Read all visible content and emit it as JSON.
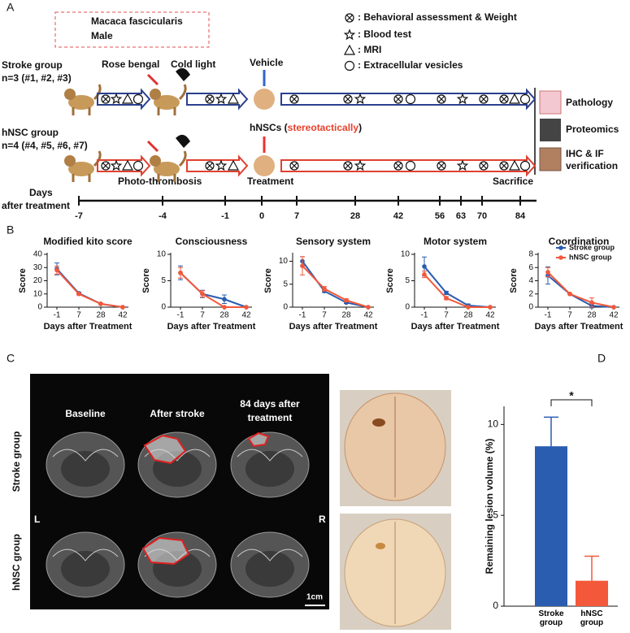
{
  "panel_labels": [
    "A",
    "B",
    "C",
    "D"
  ],
  "panel_a": {
    "species": [
      "Macaca fascicularis",
      "Male"
    ],
    "legend": [
      ": Behavioral assessment & Weight",
      ": Blood test",
      ": MRI",
      ": Extracellular vesicles"
    ],
    "groups": [
      {
        "name": "Stroke group",
        "n": "n=3 (#1, #2, #3)"
      },
      {
        "name": "hNSC group",
        "n": "n=4 (#4, #5, #6, #7)"
      }
    ],
    "steps": {
      "rose_bengal": "Rose bengal",
      "cold_light": "Cold light",
      "vehicle": "Vehicle",
      "hnsc": [
        "hNSCs (",
        "stereotactically",
        ")"
      ],
      "photothrombosis": "Photo-thrombosis",
      "treatment": "Treatment",
      "sacrifice": "Sacrifice"
    },
    "outcomes": [
      "Pathology",
      "Proteomics",
      "IHC & IF",
      "verification"
    ],
    "timeline": {
      "label": [
        "Days",
        "after treatment"
      ],
      "ticks": [
        -7,
        -4,
        -1,
        0,
        7,
        28,
        42,
        56,
        63,
        70,
        84
      ]
    }
  },
  "panel_c": {
    "columns": [
      "Baseline",
      "After stroke",
      [
        "84 days after",
        "treatment"
      ]
    ],
    "rows": [
      "Stroke group",
      "hNSC group"
    ],
    "sides": [
      "L",
      "R"
    ],
    "scale": "1cm"
  },
  "chart_data": [
    {
      "type": "line",
      "title": "Modified kito score",
      "xlabel": "Days after Treatment",
      "ylabel": "Score",
      "categories": [
        "-1",
        "7",
        "28",
        "42"
      ],
      "ylim": [
        0,
        40
      ],
      "yticks": [
        0,
        10,
        20,
        30,
        40
      ],
      "series": [
        {
          "color": "#2a5db0",
          "values": [
            29,
            10.5,
            2.5,
            0
          ],
          "errors": [
            4.5,
            1,
            0.5,
            0
          ]
        },
        {
          "color": "#f4583a",
          "values": [
            28,
            10,
            2.5,
            0
          ],
          "errors": [
            3,
            0.8,
            0.5,
            0
          ]
        }
      ]
    },
    {
      "type": "line",
      "title": "Consciousness",
      "xlabel": "Days after Treatment",
      "ylabel": "Score",
      "categories": [
        "-1",
        "7",
        "28",
        "42"
      ],
      "ylim": [
        0,
        10
      ],
      "yticks": [
        0,
        5,
        10
      ],
      "series": [
        {
          "color": "#2a5db0",
          "values": [
            6.5,
            2.5,
            1.5,
            0
          ],
          "errors": [
            1.3,
            0.7,
            0.8,
            0
          ]
        },
        {
          "color": "#f4583a",
          "values": [
            6.5,
            2.5,
            0,
            0
          ],
          "errors": [
            1,
            0.6,
            0,
            0
          ]
        }
      ]
    },
    {
      "type": "line",
      "title": "Sensory system",
      "xlabel": "Days after Treatment",
      "ylabel": "Score",
      "categories": [
        "-1",
        "7",
        "28",
        "42"
      ],
      "ylim": [
        0,
        11.5
      ],
      "yticks": [
        0,
        5,
        10
      ],
      "series": [
        {
          "color": "#2a5db0",
          "values": [
            10,
            3.5,
            1,
            0
          ],
          "errors": [
            1,
            0.3,
            0.2,
            0
          ]
        },
        {
          "color": "#f4583a",
          "values": [
            9,
            4,
            1.5,
            0
          ],
          "errors": [
            2,
            0.5,
            0.3,
            0
          ]
        }
      ]
    },
    {
      "type": "line",
      "title": "Motor system",
      "xlabel": "Days after Treatment",
      "ylabel": "Score",
      "categories": [
        "-1",
        "7",
        "28",
        "42"
      ],
      "ylim": [
        0,
        10
      ],
      "yticks": [
        0,
        5,
        10
      ],
      "series": [
        {
          "color": "#2a5db0",
          "values": [
            7.7,
            2.7,
            0.3,
            0
          ],
          "errors": [
            1.8,
            0.3,
            0.3,
            0
          ]
        },
        {
          "color": "#f4583a",
          "values": [
            6.2,
            1.7,
            0,
            0
          ],
          "errors": [
            0.6,
            0.3,
            0,
            0
          ]
        }
      ]
    },
    {
      "type": "line",
      "title": "Coordination",
      "xlabel": "Days after Treatment",
      "ylabel": "Score",
      "categories": [
        "-1",
        "7",
        "28",
        "42"
      ],
      "ylim": [
        0,
        8
      ],
      "yticks": [
        0,
        2,
        4,
        6,
        8
      ],
      "legend": "upper right",
      "series": [
        {
          "name": "Stroke group",
          "color": "#2a5db0",
          "values": [
            4.8,
            2,
            0.2,
            0
          ],
          "errors": [
            1.3,
            0,
            0.3,
            0
          ]
        },
        {
          "name": "hNSC group",
          "color": "#f4583a",
          "values": [
            5.3,
            2,
            0.7,
            0
          ],
          "errors": [
            0.7,
            0,
            0.7,
            0
          ]
        }
      ]
    },
    {
      "type": "bar",
      "ylabel": "Remaining lesion volume (%)",
      "categories": [
        "Stroke group",
        "hNSC group"
      ],
      "values": [
        8.8,
        1.4
      ],
      "errors": [
        1.6,
        1.35
      ],
      "colors": [
        "#2a5db0",
        "#f4583a"
      ],
      "ylim": [
        0,
        11
      ],
      "yticks": [
        0,
        5,
        10
      ],
      "annotation": "*"
    }
  ]
}
